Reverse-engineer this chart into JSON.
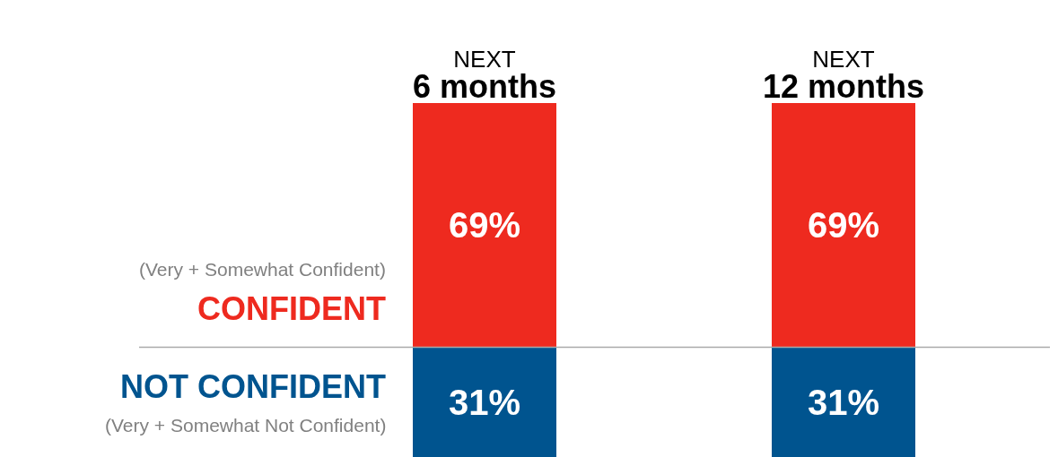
{
  "chart_data": {
    "type": "bar",
    "stacked": true,
    "categories": [
      "NEXT\n6 months",
      "NEXT\n12 months"
    ],
    "series": [
      {
        "name": "NOT CONFIDENT",
        "color": "#00548f",
        "values": [
          31,
          31
        ],
        "value_labels": [
          "31%",
          "31%"
        ]
      },
      {
        "name": "CONFIDENT",
        "color": "#ee2a1f",
        "values": [
          69,
          69
        ],
        "value_labels": [
          "69%",
          "69%"
        ]
      }
    ],
    "annotations": [
      "(Very + Somewhat Not Confident)",
      "(Very + Somewhat Confident)"
    ],
    "ref_lines": [
      {
        "axis": "y",
        "value": 31,
        "color": "#aaaaaa"
      }
    ],
    "ylim": [
      0,
      100
    ],
    "tick_labels": "x",
    "legend": false
  }
}
